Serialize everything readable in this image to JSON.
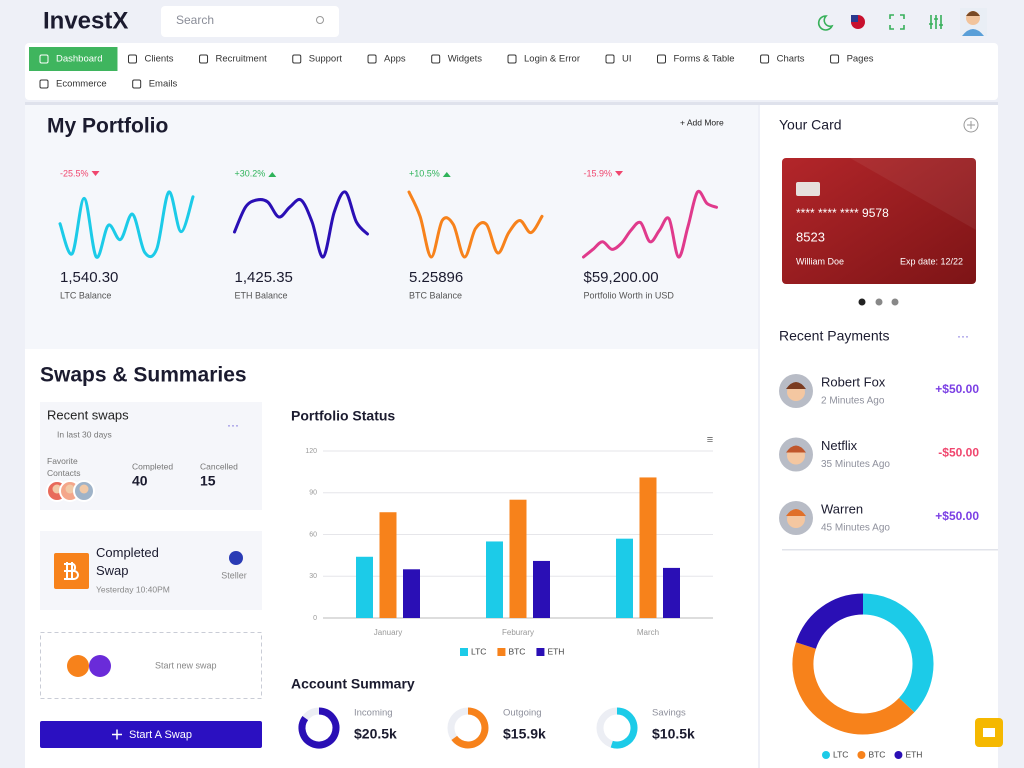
{
  "header": {
    "logo": "InvestX",
    "search": "Search"
  },
  "nav": [
    "Dashboard",
    "Clients",
    "Recruitment",
    "Support",
    "Apps",
    "Widgets",
    "Login & Error",
    "UI",
    "Forms & Table",
    "Charts",
    "Pages",
    "Ecommerce",
    "Emails"
  ],
  "portfolio": {
    "title": "My Portfolio",
    "add_more": "+ Add More",
    "items": [
      {
        "change": "-25.5%",
        "trend": "down",
        "value": "1,540.30",
        "label": "LTC Balance",
        "color": "#1ccbe8",
        "values": [
          50,
          12,
          82,
          8,
          48,
          30,
          62,
          14,
          18,
          90,
          40,
          84
        ]
      },
      {
        "change": "+30.2%",
        "trend": "up",
        "value": "1,425.35",
        "label": "ETH Balance",
        "color": "#2a0fb5",
        "values": [
          30,
          55,
          62,
          60,
          45,
          55,
          62,
          40,
          5,
          50,
          70,
          40,
          28
        ]
      },
      {
        "change": "+10.5%",
        "trend": "up",
        "value": "5.25896",
        "label": "BTC Balance",
        "color": "#f7821b",
        "values": [
          90,
          60,
          10,
          55,
          50,
          10,
          45,
          50,
          15,
          40,
          55,
          40,
          60
        ]
      },
      {
        "change": "-15.9%",
        "trend": "down",
        "value": "$59,200.00",
        "label": "Portfolio Worth in USD",
        "color": "#e03a8c",
        "values": [
          10,
          20,
          30,
          20,
          28,
          45,
          55,
          30,
          45,
          60,
          10,
          50,
          95,
          80,
          75
        ]
      }
    ]
  },
  "swaps": {
    "title": "Swaps & Summaries",
    "recent": {
      "title": "Recent swaps",
      "period": "In last 30 days",
      "contacts_label": "Favorite Contacts",
      "completed_label": "Completed",
      "completed": 40,
      "cancelled_label": "Cancelled",
      "cancelled": 15
    },
    "completed_swap": {
      "title": "Completed Swap",
      "time": "Yesterday 10:40PM",
      "network": "Steller"
    },
    "new_swap": "Start new swap",
    "button": "Start A Swap"
  },
  "account_summary": {
    "title": "Account Summary",
    "items": [
      {
        "label": "Incoming",
        "value": "$20.5k",
        "percent": 85,
        "color": "#2a0fb5"
      },
      {
        "label": "Outgoing",
        "value": "$15.9k",
        "percent": 65,
        "color": "#f7821b"
      },
      {
        "label": "Savings",
        "value": "$10.5k",
        "percent": 55,
        "color": "#1ccbe8"
      }
    ]
  },
  "card": {
    "title": "Your Card",
    "number": "**** **** **** 9578",
    "code": "8523",
    "holder": "William Doe",
    "expiry": "Exp date: 12/22"
  },
  "payments": {
    "title": "Recent Payments",
    "items": [
      {
        "name": "Robert Fox",
        "time": "2 Minutes Ago",
        "amount": "+$50.00",
        "direction": "in"
      },
      {
        "name": "Netflix",
        "time": "35 Minutes Ago",
        "amount": "-$50.00",
        "direction": "out"
      },
      {
        "name": "Warren",
        "time": "45 Minutes Ago",
        "amount": "+$50.00",
        "direction": "in"
      }
    ]
  },
  "chart_data": [
    {
      "type": "bar",
      "title": "Portfolio Status",
      "categories": [
        "January",
        "Feburary",
        "March"
      ],
      "series": [
        {
          "name": "LTC",
          "color": "#1ccbe8",
          "values": [
            44,
            55,
            57
          ]
        },
        {
          "name": "BTC",
          "color": "#f7821b",
          "values": [
            76,
            85,
            101
          ]
        },
        {
          "name": "ETH",
          "color": "#2a0fb5",
          "values": [
            35,
            41,
            36
          ]
        }
      ],
      "ylim": [
        0,
        120
      ],
      "yticks": [
        0,
        30,
        60,
        90,
        120
      ],
      "grid": true,
      "legend": "bottom"
    },
    {
      "type": "donut",
      "categories": [
        "LTC",
        "BTC",
        "ETH"
      ],
      "values": [
        37,
        43,
        20
      ],
      "colors": [
        "#1ccbe8",
        "#f7821b",
        "#2a0fb5"
      ],
      "legend": "bottom"
    }
  ]
}
